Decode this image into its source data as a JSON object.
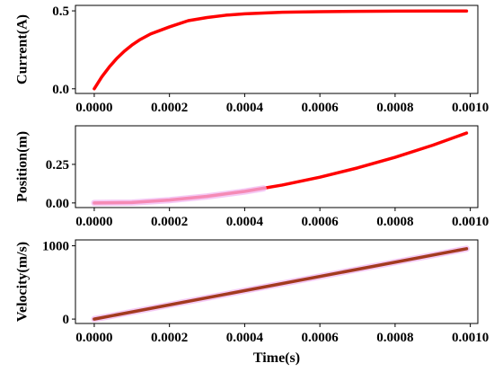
{
  "chart_data": [
    {
      "type": "line",
      "ylabel": "Current(A)",
      "xlabel": "",
      "xlim": [
        -5e-05,
        0.00102
      ],
      "ylim": [
        -0.03,
        0.535
      ],
      "xticks": [
        0.0,
        0.0002,
        0.0004,
        0.0006,
        0.0008,
        0.001
      ],
      "xtick_labels": [
        "0.0000",
        "0.0002",
        "0.0004",
        "0.0006",
        "0.0008",
        "0.0010"
      ],
      "yticks": [
        0.0,
        0.5
      ],
      "ytick_labels": [
        "0.0",
        "0.5"
      ],
      "grid": false,
      "series": [
        {
          "color": "#ff0000",
          "x": [
            0.0,
            2e-05,
            4e-05,
            6e-05,
            8e-05,
            0.0001,
            0.00012,
            0.00015,
            0.0002,
            0.00025,
            0.0003,
            0.00035,
            0.0004,
            0.0005,
            0.0006,
            0.0007,
            0.0008,
            0.0009,
            0.00099
          ],
          "y": [
            0.0,
            0.076,
            0.14,
            0.195,
            0.241,
            0.28,
            0.313,
            0.352,
            0.397,
            0.437,
            0.457,
            0.472,
            0.481,
            0.491,
            0.495,
            0.497,
            0.498,
            0.499,
            0.499
          ]
        }
      ]
    },
    {
      "type": "line",
      "ylabel": "Position(m)",
      "xlabel": "",
      "xlim": [
        -5e-05,
        0.00102
      ],
      "ylim": [
        -0.03,
        0.5
      ],
      "xticks": [
        0.0,
        0.0002,
        0.0004,
        0.0006,
        0.0008,
        0.001
      ],
      "xtick_labels": [
        "0.0000",
        "0.0002",
        "0.0004",
        "0.0006",
        "0.0008",
        "0.0010"
      ],
      "yticks": [
        0.0,
        0.25
      ],
      "ytick_labels": [
        "0.00",
        "0.25"
      ],
      "grid": false,
      "series": [
        {
          "color": "#ff0000",
          "x": [
            0.0,
            0.0001,
            0.0002,
            0.0003,
            0.0004,
            0.0005,
            0.0006,
            0.0007,
            0.0008,
            0.0009,
            0.00099
          ],
          "y": [
            0.0,
            0.003,
            0.019,
            0.043,
            0.075,
            0.116,
            0.167,
            0.227,
            0.296,
            0.374,
            0.453
          ]
        },
        {
          "color": "#f2b8f2",
          "x": [
            0.0,
            0.0001,
            0.0002,
            0.0003,
            0.0004,
            0.00045
          ],
          "y": [
            0.0,
            0.002,
            0.018,
            0.042,
            0.074,
            0.094
          ]
        }
      ]
    },
    {
      "type": "line",
      "ylabel": "Velocity(m/s)",
      "xlabel": "Time(s)",
      "xlim": [
        -5e-05,
        0.00102
      ],
      "ylim": [
        -60,
        1080
      ],
      "xticks": [
        0.0,
        0.0002,
        0.0004,
        0.0006,
        0.0008,
        0.001
      ],
      "xtick_labels": [
        "0.0000",
        "0.0002",
        "0.0004",
        "0.0006",
        "0.0008",
        "0.0010"
      ],
      "yticks": [
        0,
        1000
      ],
      "ytick_labels": [
        "0",
        "1000"
      ],
      "grid": false,
      "series": [
        {
          "color": "#f2b8f2",
          "x": [
            0.0,
            0.00099
          ],
          "y": [
            0,
            960
          ]
        },
        {
          "color": "#a33a1f",
          "x": [
            0.0,
            0.00099
          ],
          "y": [
            0,
            960
          ]
        }
      ]
    }
  ]
}
